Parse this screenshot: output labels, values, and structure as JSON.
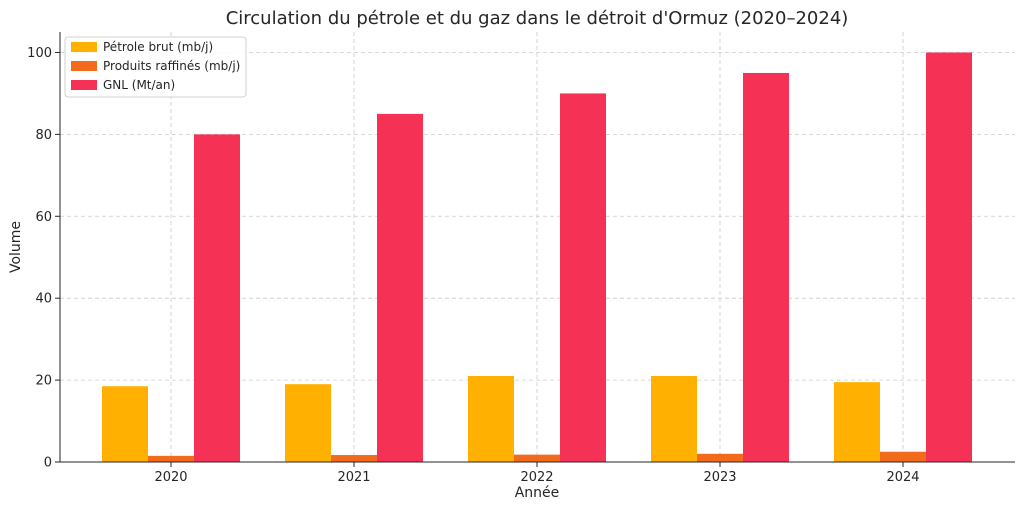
{
  "chart_data": {
    "type": "bar",
    "title": "Circulation du pétrole et du gaz dans le détroit d'Ormuz (2020–2024)",
    "xlabel": "Année",
    "ylabel": "Volume",
    "categories": [
      "2020",
      "2021",
      "2022",
      "2023",
      "2024"
    ],
    "series": [
      {
        "name": "Pétrole brut (mb/j)",
        "color": "#FFB000",
        "values": [
          18.5,
          19,
          21,
          21,
          19.5
        ]
      },
      {
        "name": "Produits raffinés (mb/j)",
        "color": "#F26A1B",
        "values": [
          1.5,
          1.7,
          1.8,
          2.0,
          2.5
        ]
      },
      {
        "name": "GNL (Mt/an)",
        "color": "#F53255",
        "values": [
          80,
          85,
          90,
          95,
          100
        ]
      }
    ],
    "ylim": [
      0,
      105
    ],
    "yticks": [
      0,
      20,
      40,
      60,
      80,
      100
    ],
    "grid": true,
    "legend_position": "top-left"
  }
}
